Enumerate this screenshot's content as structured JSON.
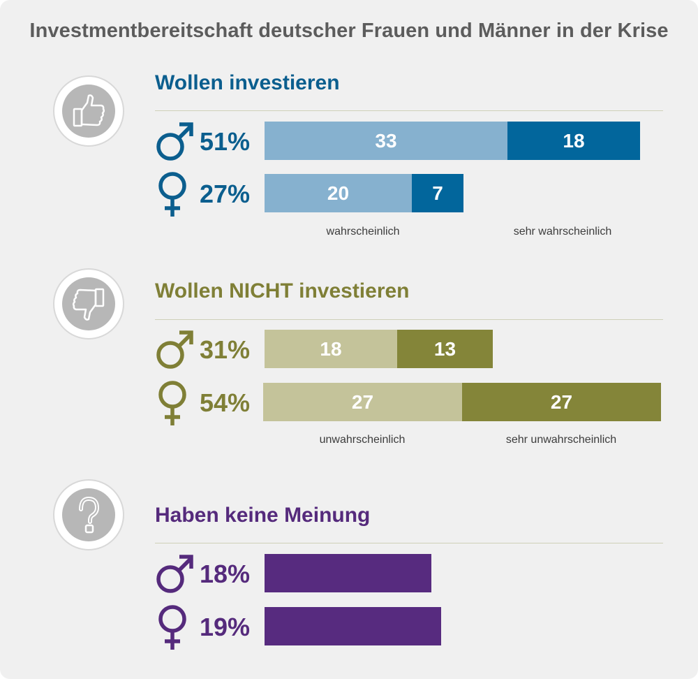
{
  "title": "Investmentbereitschaft deutscher Frauen und Männer in der Krise",
  "colors": {
    "invest_light": "#86b1cf",
    "invest_dark": "#02669c",
    "invest_text": "#0b5e8e",
    "not_light": "#c4c39a",
    "not_dark": "#848539",
    "not_text": "#7f7f36",
    "none_bar": "#572b7f",
    "none_text": "#552a7c"
  },
  "icons": [
    "thumbs-up-icon",
    "thumbs-down-icon",
    "question-mark-icon",
    "male-symbol-icon",
    "female-symbol-icon"
  ],
  "chart_data": [
    {
      "type": "bar",
      "stacked": true,
      "orientation": "horizontal",
      "title": "Wollen investieren",
      "categories": [
        "Männer",
        "Frauen"
      ],
      "totals": [
        "51%",
        "27%"
      ],
      "series": [
        {
          "name": "wahrscheinlich",
          "values": [
            33,
            20
          ]
        },
        {
          "name": "sehr wahrscheinlich",
          "values": [
            18,
            7
          ]
        }
      ]
    },
    {
      "type": "bar",
      "stacked": true,
      "orientation": "horizontal",
      "title": "Wollen NICHT investieren",
      "categories": [
        "Männer",
        "Frauen"
      ],
      "totals": [
        "31%",
        "54%"
      ],
      "series": [
        {
          "name": "unwahrscheinlich",
          "values": [
            18,
            27
          ]
        },
        {
          "name": "sehr unwahrscheinlich",
          "values": [
            13,
            27
          ]
        }
      ]
    },
    {
      "type": "bar",
      "orientation": "horizontal",
      "title": "Haben keine Meinung",
      "categories": [
        "Männer",
        "Frauen"
      ],
      "totals": [
        "18%",
        "19%"
      ],
      "values": [
        18,
        19
      ]
    }
  ]
}
